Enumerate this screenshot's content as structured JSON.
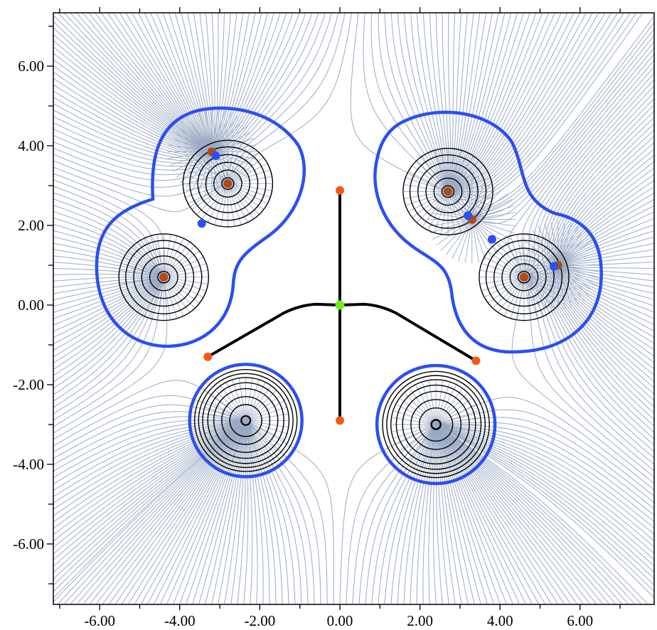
{
  "chart_data": {
    "type": "scatter",
    "title": "",
    "xlabel": "",
    "ylabel": "",
    "xlim": [
      -7.0,
      7.8
    ],
    "ylim": [
      -7.4,
      7.4
    ],
    "grid": false,
    "legend": null,
    "x_ticks": [
      -6,
      -4,
      -2,
      0,
      2,
      4,
      6
    ],
    "x_tick_labels": [
      "-6.00",
      "-4.00",
      "-2.00",
      "0.00",
      "2.00",
      "4.00",
      "6.00"
    ],
    "y_ticks": [
      6,
      4,
      2,
      0,
      -2,
      -4,
      -6
    ],
    "y_tick_labels": [
      "6.00",
      "4.00",
      "2.00",
      "0.00",
      "-2.00",
      "-4.00",
      "-6.00"
    ],
    "colors": {
      "gradient_lines": "#9aaac4",
      "contour_lines": "#000000",
      "basin_boundary": "#2b4ff0",
      "bond_paths": "#000000",
      "nuclear_attractor": "#b5470f",
      "bond_critical_point": "#2b4ff0",
      "ring_or_bond_cp_orange": "#f25a12",
      "cage_center_point": "#6cf01c"
    },
    "series": [
      {
        "name": "nuclear attractors",
        "color": "#b5470f",
        "points": [
          [
            -3.2,
            3.85
          ],
          [
            -2.8,
            3.05
          ],
          [
            -4.4,
            0.7
          ],
          [
            2.7,
            2.85
          ],
          [
            3.3,
            2.15
          ],
          [
            4.6,
            0.7
          ],
          [
            5.45,
            1.0
          ],
          [
            -2.35,
            -2.9
          ],
          [
            2.4,
            -3.0
          ]
        ]
      },
      {
        "name": "bond critical points (blue)",
        "color": "#2b4ff0",
        "points": [
          [
            -3.1,
            3.75
          ],
          [
            -3.45,
            2.05
          ],
          [
            3.2,
            2.25
          ],
          [
            3.8,
            1.65
          ],
          [
            5.35,
            0.97
          ]
        ]
      },
      {
        "name": "critical points (orange)",
        "color": "#f25a12",
        "points": [
          [
            0.0,
            2.88
          ],
          [
            0.0,
            -2.9
          ],
          [
            -3.3,
            -1.3
          ],
          [
            3.4,
            -1.4
          ]
        ]
      },
      {
        "name": "central critical point",
        "color": "#6cf01c",
        "points": [
          [
            0.0,
            0.0
          ]
        ]
      }
    ],
    "bond_paths": [
      {
        "from": [
          0.0,
          0.0
        ],
        "to": [
          0.0,
          2.88
        ]
      },
      {
        "from": [
          0.0,
          0.0
        ],
        "to": [
          0.0,
          -2.9
        ]
      },
      {
        "from": [
          0.0,
          0.0
        ],
        "to": [
          -3.3,
          -1.3
        ],
        "via": [
          -0.7,
          0.02
        ]
      },
      {
        "from": [
          0.0,
          0.0
        ],
        "to": [
          3.4,
          -1.4
        ],
        "via": [
          0.7,
          0.02
        ]
      }
    ],
    "basins": [
      {
        "name": "upper-left fragment",
        "centers": [
          [
            -2.8,
            3.05
          ],
          [
            -4.4,
            0.7
          ]
        ]
      },
      {
        "name": "upper-right fragment",
        "centers": [
          [
            2.7,
            2.85
          ],
          [
            4.6,
            0.7
          ]
        ]
      },
      {
        "name": "lower-left atom",
        "center": [
          -2.35,
          -2.9
        ],
        "radius": 1.42
      },
      {
        "name": "lower-right atom",
        "center": [
          2.4,
          -3.0
        ],
        "radius": 1.48
      }
    ]
  }
}
